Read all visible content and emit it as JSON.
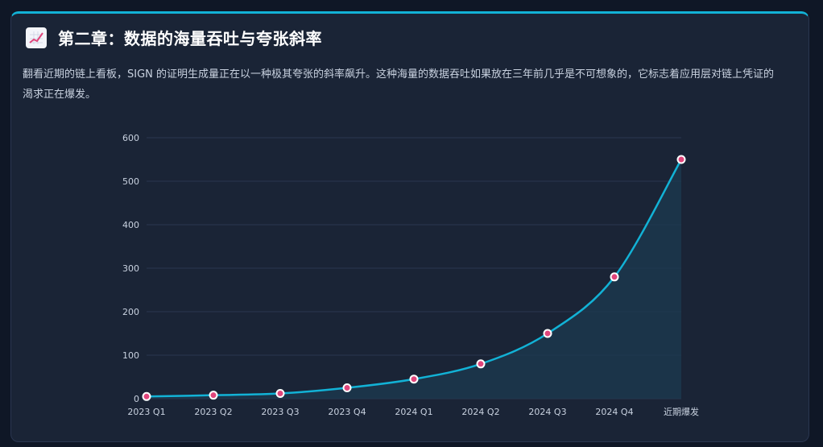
{
  "header": {
    "icon": "chart-increasing-icon",
    "title": "第二章：数据的海量吞吐与夸张斜率",
    "description": "翻看近期的链上看板，SIGN 的证明生成量正在以一种极其夸张的斜率飙升。这种海量的数据吞吐如果放在三年前几乎是不可想象的，它标志着应用层对链上凭证的渴求正在爆发。"
  },
  "colors": {
    "accent": "#12b2d6",
    "point_fill": "#e0457b",
    "area_fill": "#1c3a50",
    "grid": "#2a3650"
  },
  "chart_data": {
    "type": "line",
    "categories": [
      "2023 Q1",
      "2023 Q2",
      "2023 Q3",
      "2023 Q4",
      "2024 Q1",
      "2024 Q2",
      "2024 Q3",
      "2024 Q4",
      "近期爆发"
    ],
    "series": [
      {
        "values": [
          5,
          8,
          12,
          25,
          45,
          80,
          150,
          280,
          550
        ]
      }
    ],
    "ylim": [
      0,
      600
    ],
    "yticks": [
      0,
      100,
      200,
      300,
      400,
      500,
      600
    ],
    "grid": true,
    "area_fill": true,
    "smooth": true
  }
}
